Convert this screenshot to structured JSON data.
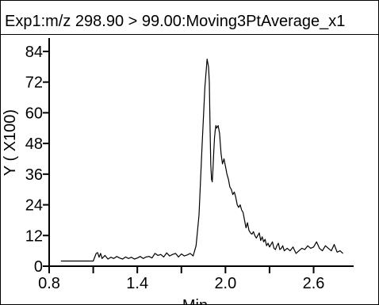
{
  "colors": {
    "trace": "#000000",
    "axis": "#000000",
    "background": "#ffffff"
  },
  "chart_data": {
    "type": "line",
    "title": "Exp1:m/z 298.90 > 99.00:Moving3PtAverage_x1",
    "xlabel": "Min",
    "ylabel": "Y ( X100)",
    "xlim": [
      0.8,
      2.84
    ],
    "ylim": [
      0,
      88
    ],
    "xticks": [
      0.8,
      1.4,
      2.0,
      2.6
    ],
    "xtick_labels": [
      "0.8",
      "1.4",
      "2.0",
      "2.6"
    ],
    "yticks": [
      0,
      12,
      24,
      36,
      48,
      60,
      72,
      84
    ],
    "ytick_labels": [
      "0",
      "12",
      "24",
      "36",
      "48",
      "60",
      "72",
      "84"
    ],
    "grid": false,
    "legend": "none",
    "series": [
      {
        "x": [
          0.88,
          1.1,
          1.12,
          1.13,
          1.14,
          1.15,
          1.16,
          1.18,
          1.2,
          1.22,
          1.24,
          1.26,
          1.28,
          1.3,
          1.32,
          1.34,
          1.36,
          1.38,
          1.4,
          1.42,
          1.44,
          1.46,
          1.48,
          1.5,
          1.52,
          1.54,
          1.56,
          1.58,
          1.6,
          1.62,
          1.64,
          1.66,
          1.68,
          1.7,
          1.72,
          1.74,
          1.76,
          1.78,
          1.8,
          1.82,
          1.84,
          1.86,
          1.875,
          1.885,
          1.89,
          1.895,
          1.9,
          1.905,
          1.91,
          1.915,
          1.92,
          1.925,
          1.93,
          1.935,
          1.94,
          1.95,
          1.96,
          1.97,
          1.98,
          1.99,
          2.0,
          2.01,
          2.02,
          2.03,
          2.04,
          2.05,
          2.06,
          2.07,
          2.08,
          2.09,
          2.1,
          2.11,
          2.12,
          2.13,
          2.14,
          2.15,
          2.16,
          2.17,
          2.18,
          2.19,
          2.2,
          2.21,
          2.22,
          2.23,
          2.24,
          2.25,
          2.26,
          2.27,
          2.28,
          2.29,
          2.3,
          2.31,
          2.32,
          2.33,
          2.34,
          2.35,
          2.36,
          2.37,
          2.38,
          2.39,
          2.4,
          2.42,
          2.44,
          2.46,
          2.48,
          2.5,
          2.52,
          2.54,
          2.56,
          2.58,
          2.6,
          2.62,
          2.64,
          2.66,
          2.68,
          2.7,
          2.72,
          2.74,
          2.76,
          2.78,
          2.8
        ],
        "y": [
          2.0,
          2.0,
          5.0,
          5.3,
          3.5,
          5.0,
          3.0,
          4.2,
          2.8,
          3.5,
          3.0,
          3.8,
          3.2,
          2.8,
          3.6,
          3.0,
          3.5,
          2.8,
          3.2,
          3.8,
          3.0,
          3.6,
          3.8,
          3.2,
          5.0,
          4.2,
          4.6,
          3.6,
          5.2,
          4.0,
          4.6,
          5.0,
          3.6,
          4.8,
          4.0,
          4.4,
          5.0,
          4.0,
          8.0,
          20.0,
          46.0,
          70.0,
          81.0,
          78.0,
          72.0,
          55.0,
          40.0,
          34.0,
          33.0,
          38.0,
          44.0,
          50.0,
          53.0,
          55.0,
          54.0,
          55.0,
          52.0,
          44.0,
          40.0,
          42.0,
          39.0,
          36.0,
          34.0,
          31.0,
          30.0,
          28.0,
          29.0,
          27.0,
          24.0,
          23.0,
          24.0,
          22.0,
          21.0,
          18.0,
          15.0,
          17.0,
          14.0,
          13.0,
          12.5,
          13.5,
          12.0,
          11.0,
          12.0,
          13.0,
          10.0,
          11.5,
          9.5,
          10.5,
          8.0,
          9.0,
          7.5,
          8.5,
          9.5,
          7.0,
          6.5,
          8.0,
          9.0,
          6.5,
          7.0,
          8.0,
          6.0,
          7.0,
          6.0,
          7.5,
          5.0,
          6.0,
          7.0,
          6.5,
          8.0,
          7.0,
          7.5,
          9.5,
          7.0,
          6.0,
          8.0,
          7.0,
          6.0,
          8.5,
          5.5,
          6.0,
          5.0
        ]
      }
    ]
  }
}
